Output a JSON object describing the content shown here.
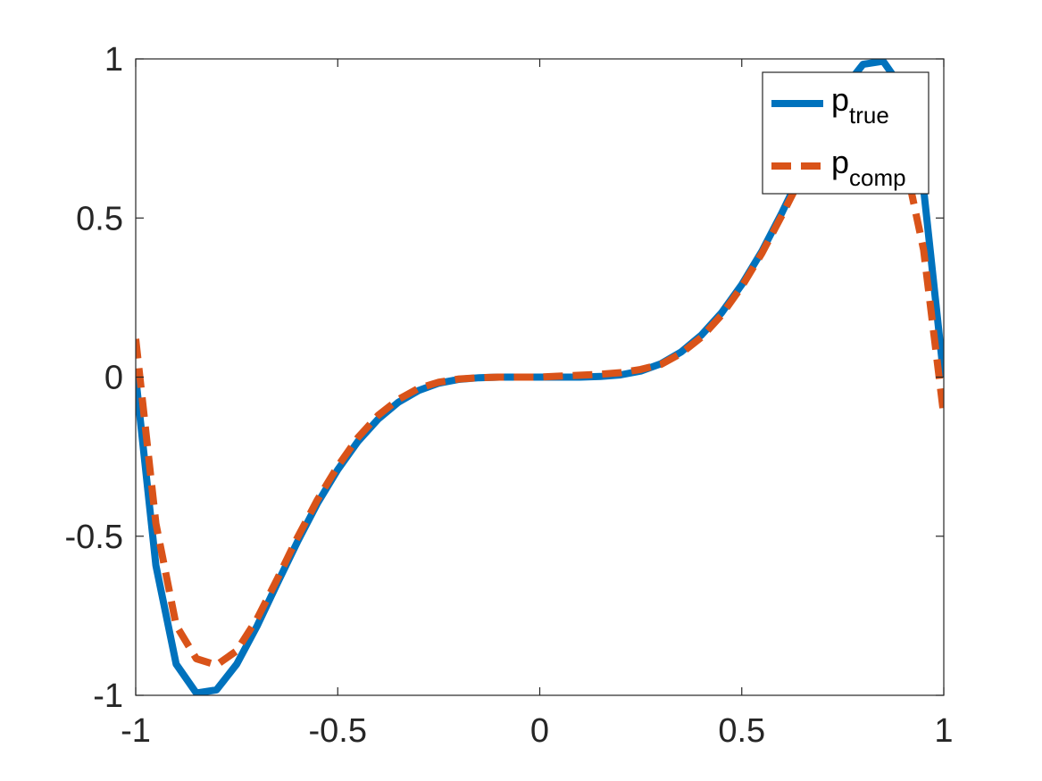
{
  "chart_data": {
    "type": "line",
    "title": "",
    "xlabel": "",
    "ylabel": "",
    "xlim": [
      -1,
      1
    ],
    "ylim": [
      -1,
      1
    ],
    "grid": false,
    "legend_position": "top-right",
    "xticks": [
      -1,
      -0.5,
      0,
      0.5,
      1
    ],
    "yticks": [
      -1,
      -0.5,
      0,
      0.5,
      1
    ],
    "xtick_labels": [
      "-1",
      "-0.5",
      "0",
      "0.5",
      "1"
    ],
    "ytick_labels": [
      "-1",
      "-0.5",
      "0",
      "0.5",
      "1"
    ],
    "series": [
      {
        "name": "true",
        "legend_base": "p",
        "legend_sub": "true",
        "color": "#0072BD",
        "style": "solid",
        "x": [
          -1.0,
          -0.95,
          -0.9,
          -0.85,
          -0.8,
          -0.75,
          -0.7,
          -0.65,
          -0.6,
          -0.55,
          -0.5,
          -0.45,
          -0.4,
          -0.35,
          -0.3,
          -0.25,
          -0.2,
          -0.15,
          -0.1,
          -0.05,
          0.0,
          0.05,
          0.1,
          0.15,
          0.2,
          0.25,
          0.3,
          0.35,
          0.4,
          0.45,
          0.5,
          0.55,
          0.6,
          0.65,
          0.7,
          0.75,
          0.8,
          0.85,
          0.9,
          0.95,
          1.0
        ],
        "y": [
          0.0,
          -0.592,
          -0.902,
          -0.993,
          -0.983,
          -0.902,
          -0.783,
          -0.649,
          -0.518,
          -0.396,
          -0.291,
          -0.202,
          -0.132,
          -0.079,
          -0.042,
          -0.019,
          -0.007,
          -0.002,
          0.0,
          0.0,
          0.0,
          0.0,
          0.0,
          0.002,
          0.007,
          0.019,
          0.042,
          0.079,
          0.132,
          0.202,
          0.291,
          0.396,
          0.518,
          0.649,
          0.783,
          0.902,
          0.983,
          0.993,
          0.902,
          0.592,
          0.0
        ]
      },
      {
        "name": "comp",
        "legend_base": "p",
        "legend_sub": "comp",
        "color": "#D95319",
        "style": "dashed",
        "x": [
          -1.0,
          -0.95,
          -0.9,
          -0.85,
          -0.8,
          -0.75,
          -0.7,
          -0.65,
          -0.6,
          -0.55,
          -0.5,
          -0.45,
          -0.4,
          -0.35,
          -0.3,
          -0.25,
          -0.2,
          -0.15,
          -0.1,
          -0.05,
          0.0,
          0.05,
          0.1,
          0.15,
          0.2,
          0.25,
          0.3,
          0.35,
          0.4,
          0.45,
          0.5,
          0.55,
          0.6,
          0.65,
          0.7,
          0.75,
          0.8,
          0.85,
          0.9,
          0.95,
          1.0
        ],
        "y": [
          0.12,
          -0.46,
          -0.78,
          -0.885,
          -0.905,
          -0.86,
          -0.76,
          -0.635,
          -0.505,
          -0.385,
          -0.28,
          -0.19,
          -0.12,
          -0.07,
          -0.035,
          -0.016,
          -0.006,
          -0.002,
          0.0,
          0.0,
          0.0,
          0.003,
          0.006,
          0.009,
          0.014,
          0.024,
          0.04,
          0.075,
          0.125,
          0.195,
          0.285,
          0.39,
          0.51,
          0.635,
          0.75,
          0.84,
          0.87,
          0.83,
          0.7,
          0.4,
          -0.12
        ]
      }
    ]
  }
}
